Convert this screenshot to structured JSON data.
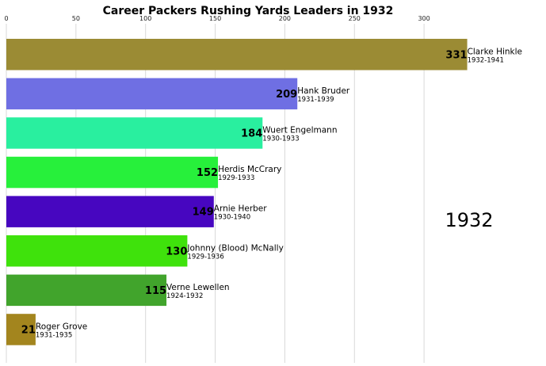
{
  "chart_data": {
    "type": "bar",
    "orientation": "horizontal",
    "title": "Career Packers Rushing Yards Leaders in 1932",
    "xlabel": "",
    "ylabel": "",
    "xlim": [
      0,
      340
    ],
    "x_ticks": [
      0,
      50,
      100,
      150,
      200,
      250,
      300
    ],
    "x_axis_position": "top",
    "grid": true,
    "year": "1932",
    "bars": [
      {
        "name": "Clarke Hinkle",
        "years": "1932-1941",
        "value": 331,
        "color": "#9b8b34"
      },
      {
        "name": "Hank Bruder",
        "years": "1931-1939",
        "value": 209,
        "color": "#6f6fe3"
      },
      {
        "name": "Wuert Engelmann",
        "years": "1930-1933",
        "value": 184,
        "color": "#29ef9f"
      },
      {
        "name": "Herdis McCrary",
        "years": "1929-1933",
        "value": 152,
        "color": "#27f03b"
      },
      {
        "name": "Arnie Herber",
        "years": "1930-1940",
        "value": 149,
        "color": "#4706c0"
      },
      {
        "name": "Johnny (Blood) McNally",
        "years": "1929-1936",
        "value": 130,
        "color": "#3fe20c"
      },
      {
        "name": "Verne Lewellen",
        "years": "1924-1932",
        "value": 115,
        "color": "#41a42c"
      },
      {
        "name": "Roger Grove",
        "years": "1931-1935",
        "value": 21,
        "color": "#a3851e"
      }
    ]
  }
}
